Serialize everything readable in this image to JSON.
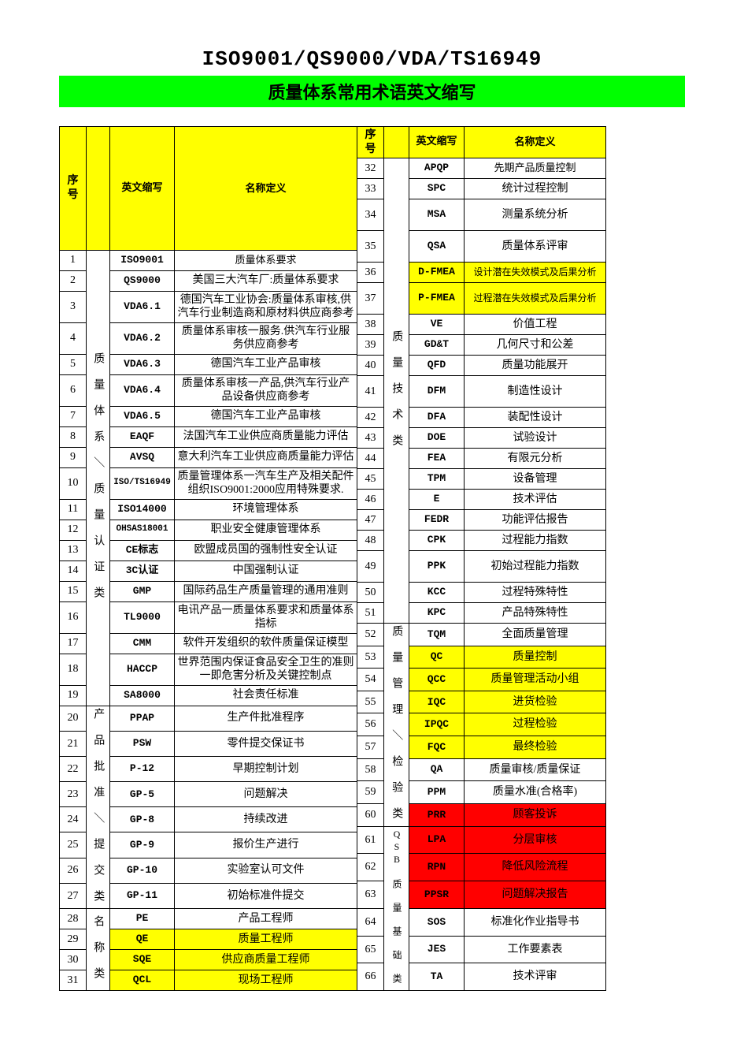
{
  "title_main": "ISO9001/QS9000/VDA/TS16949",
  "title_sub": "质量体系常用术语英文缩写",
  "headers": {
    "seq": "序  号",
    "abbr": "英文缩写",
    "def": "名称定义"
  },
  "categories": {
    "cat1": "质 量 体 系 ＼ 质 量 认 证 类",
    "cat2": "产 品 批 准 ＼ 提 交 类",
    "cat3": "名 称 类",
    "cat4": "质 量 技 术 类",
    "cat5": "质 量 管 理 ＼ 检 验 类",
    "cat6": "QSB 质 量 基 础 类"
  },
  "colors": {
    "header_bg": "#ffff00",
    "subtitle_bg": "#00ff00",
    "highlight_yellow": "#ffff00",
    "highlight_red": "#ff0000",
    "border": "#000000",
    "page_bg": "#ffffff",
    "text": "#000000"
  },
  "left_rows": [
    {
      "n": "1",
      "abbr": "ISO9001",
      "def": "质量体系要求",
      "hl": ""
    },
    {
      "n": "2",
      "abbr": "QS9000",
      "def": "美国三大汽车厂:质量体系要求",
      "hl": ""
    },
    {
      "n": "3",
      "abbr": "VDA6.1",
      "def": "德国汽车工业协会:质量体系审核,供汽车行业制造商和原材料供应商参考",
      "hl": ""
    },
    {
      "n": "4",
      "abbr": "VDA6.2",
      "def": "质量体系审核一服务.供汽车行业服务供应商参考",
      "hl": ""
    },
    {
      "n": "5",
      "abbr": "VDA6.3",
      "def": "德国汽车工业产品审核",
      "hl": ""
    },
    {
      "n": "6",
      "abbr": "VDA6.4",
      "def": "质量体系审核一产品,供汽车行业产品设备供应商参考",
      "hl": ""
    },
    {
      "n": "7",
      "abbr": "VDA6.5",
      "def": "德国汽车工业产品审核",
      "hl": ""
    },
    {
      "n": "8",
      "abbr": "EAQF",
      "def": "法国汽车工业供应商质量能力评估",
      "hl": ""
    },
    {
      "n": "9",
      "abbr": "AVSQ",
      "def": "意大利汽车工业供应商质量能力评估",
      "hl": ""
    },
    {
      "n": "10",
      "abbr": "ISO/TS16949",
      "def": "质量管理体系一汽车生产及相关配件组织ISO9001:2000应用特殊要求.",
      "hl": ""
    },
    {
      "n": "11",
      "abbr": "ISO14000",
      "def": "环境管理体系",
      "hl": ""
    },
    {
      "n": "12",
      "abbr": "OHSAS18001",
      "def": "职业安全健康管理体系",
      "hl": ""
    },
    {
      "n": "13",
      "abbr": "CE标志",
      "def": "欧盟成员国的强制性安全认证",
      "hl": ""
    },
    {
      "n": "14",
      "abbr": "3C认证",
      "def": "中国强制认证",
      "hl": ""
    },
    {
      "n": "15",
      "abbr": "GMP",
      "def": "国际药品生产质量管理的通用准则",
      "hl": ""
    },
    {
      "n": "16",
      "abbr": "TL9000",
      "def": "电讯产品一质量体系要求和质量体系指标",
      "hl": ""
    },
    {
      "n": "17",
      "abbr": "CMM",
      "def": "软件开发组织的软件质量保证模型",
      "hl": ""
    },
    {
      "n": "18",
      "abbr": "HACCP",
      "def": "世界范围内保证食品安全卫生的准则一即危害分析及关键控制点",
      "hl": ""
    },
    {
      "n": "19",
      "abbr": "SA8000",
      "def": "社会责任标准",
      "hl": ""
    },
    {
      "n": "20",
      "abbr": "PPAP",
      "def": "生产件批准程序",
      "hl": ""
    },
    {
      "n": "21",
      "abbr": "PSW",
      "def": "零件提交保证书",
      "hl": ""
    },
    {
      "n": "22",
      "abbr": "P-12",
      "def": "早期控制计划",
      "hl": ""
    },
    {
      "n": "23",
      "abbr": "GP-5",
      "def": "问题解决",
      "hl": ""
    },
    {
      "n": "24",
      "abbr": "GP-8",
      "def": "持续改进",
      "hl": ""
    },
    {
      "n": "25",
      "abbr": "GP-9",
      "def": "报价生产进行",
      "hl": ""
    },
    {
      "n": "26",
      "abbr": "GP-10",
      "def": "实验室认可文件",
      "hl": ""
    },
    {
      "n": "27",
      "abbr": "GP-11",
      "def": "初始标准件提交",
      "hl": ""
    },
    {
      "n": "28",
      "abbr": "PE",
      "def": "产品工程师",
      "hl": ""
    },
    {
      "n": "29",
      "abbr": "QE",
      "def": "质量工程师",
      "hl": "yellow"
    },
    {
      "n": "30",
      "abbr": "SQE",
      "def": "供应商质量工程师",
      "hl": "yellow"
    },
    {
      "n": "31",
      "abbr": "QCL",
      "def": "现场工程师",
      "hl": "yellow"
    }
  ],
  "right_rows": [
    {
      "n": "32",
      "abbr": "APQP",
      "def": "先期产品质量控制",
      "hl": ""
    },
    {
      "n": "33",
      "abbr": "SPC",
      "def": "统计过程控制",
      "hl": ""
    },
    {
      "n": "34",
      "abbr": "MSA",
      "def": "测量系统分析",
      "hl": ""
    },
    {
      "n": "35",
      "abbr": "QSA",
      "def": "质量体系评审",
      "hl": ""
    },
    {
      "n": "36",
      "abbr": "D-FMEA",
      "def": "设计潜在失效模式及后果分析",
      "hl": "yellow"
    },
    {
      "n": "37",
      "abbr": "P-FMEA",
      "def": "过程潜在失效模式及后果分析",
      "hl": "yellow"
    },
    {
      "n": "38",
      "abbr": "VE",
      "def": "价值工程",
      "hl": ""
    },
    {
      "n": "39",
      "abbr": "GD&T",
      "def": "几何尺寸和公差",
      "hl": ""
    },
    {
      "n": "40",
      "abbr": "QFD",
      "def": "质量功能展开",
      "hl": ""
    },
    {
      "n": "41",
      "abbr": "DFM",
      "def": "制造性设计",
      "hl": ""
    },
    {
      "n": "42",
      "abbr": "DFA",
      "def": "装配性设计",
      "hl": ""
    },
    {
      "n": "43",
      "abbr": "DOE",
      "def": "试验设计",
      "hl": ""
    },
    {
      "n": "44",
      "abbr": "FEA",
      "def": "有限元分析",
      "hl": ""
    },
    {
      "n": "45",
      "abbr": "TPM",
      "def": "设备管理",
      "hl": ""
    },
    {
      "n": "46",
      "abbr": "E",
      "def": "技术评估",
      "hl": ""
    },
    {
      "n": "47",
      "abbr": "FEDR",
      "def": "功能评估报告",
      "hl": ""
    },
    {
      "n": "48",
      "abbr": "CPK",
      "def": "过程能力指数",
      "hl": ""
    },
    {
      "n": "49",
      "abbr": "PPK",
      "def": "初始过程能力指数",
      "hl": ""
    },
    {
      "n": "50",
      "abbr": "KCC",
      "def": "过程特殊特性",
      "hl": ""
    },
    {
      "n": "51",
      "abbr": "KPC",
      "def": "产品特殊特性",
      "hl": ""
    },
    {
      "n": "52",
      "abbr": "TQM",
      "def": "全面质量管理",
      "hl": ""
    },
    {
      "n": "53",
      "abbr": "QC",
      "def": "质量控制",
      "hl": "yellow"
    },
    {
      "n": "54",
      "abbr": "QCC",
      "def": "质量管理活动小组",
      "hl": "yellow"
    },
    {
      "n": "55",
      "abbr": "IQC",
      "def": "进货检验",
      "hl": "yellow"
    },
    {
      "n": "56",
      "abbr": "IPQC",
      "def": "过程检验",
      "hl": "yellow"
    },
    {
      "n": "57",
      "abbr": "FQC",
      "def": "最终检验",
      "hl": "yellow"
    },
    {
      "n": "58",
      "abbr": "QA",
      "def": "质量审核/质量保证",
      "hl": ""
    },
    {
      "n": "59",
      "abbr": "PPM",
      "def": "质量水准(合格率)",
      "hl": ""
    },
    {
      "n": "60",
      "abbr": "PRR",
      "def": "顾客投诉",
      "hl": "red"
    },
    {
      "n": "61",
      "abbr": "LPA",
      "def": "分层审核",
      "hl": "red"
    },
    {
      "n": "62",
      "abbr": "RPN",
      "def": "降低风险流程",
      "hl": "red"
    },
    {
      "n": "63",
      "abbr": "PPSR",
      "def": "问题解决报告",
      "hl": "red"
    },
    {
      "n": "64",
      "abbr": "SOS",
      "def": "标准化作业指导书",
      "hl": ""
    },
    {
      "n": "65",
      "abbr": "JES",
      "def": "工作要素表",
      "hl": ""
    },
    {
      "n": "66",
      "abbr": "TA",
      "def": "技术评审",
      "hl": ""
    }
  ]
}
